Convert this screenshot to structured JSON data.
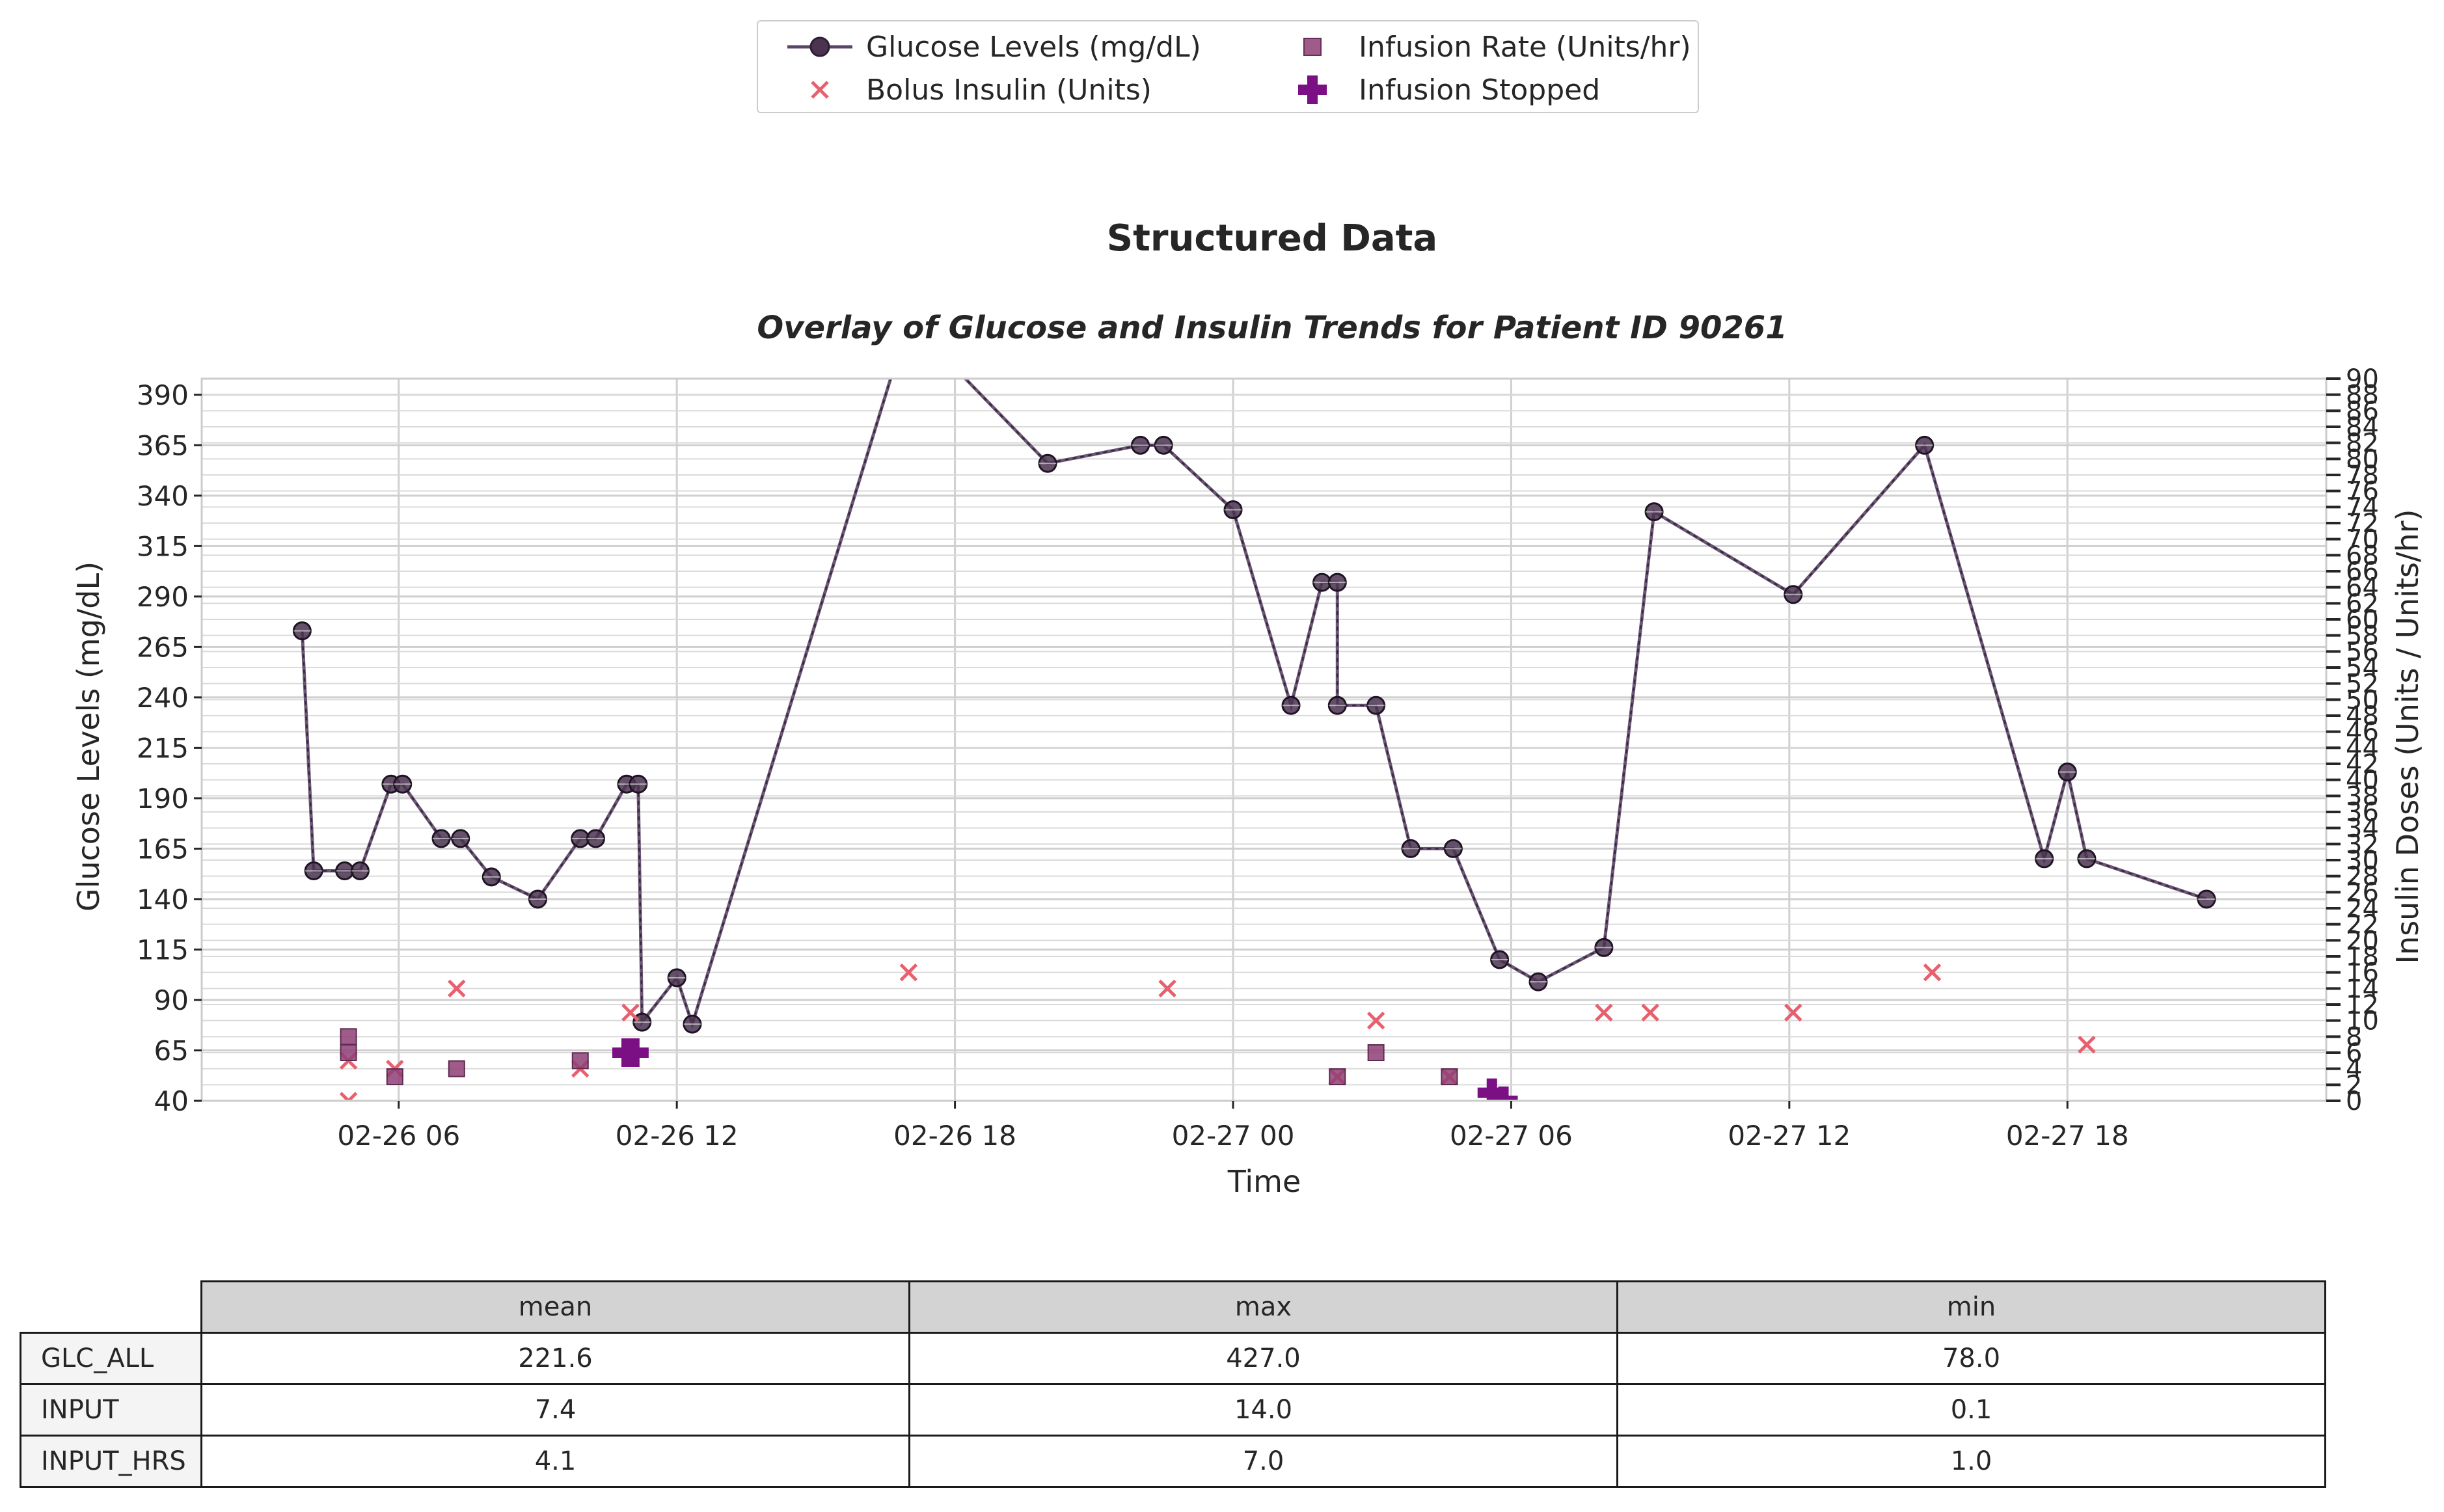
{
  "figure_title": "Structured Data",
  "chart_data": {
    "type": "line",
    "title": "Overlay of Glucose and Insulin Trends for Patient ID 90261",
    "xlabel": "Time",
    "ylabel": "Glucose Levels (mg/dL)",
    "y2label": "Insulin Doses (Units / Units/hr)",
    "ylim": [
      40,
      398
    ],
    "y2lim": [
      0,
      90
    ],
    "yticks": [
      40,
      65,
      90,
      115,
      140,
      165,
      190,
      215,
      240,
      265,
      290,
      315,
      340,
      365,
      390
    ],
    "xticks": [
      {
        "t": "2025-02-26T06:00",
        "label": "02-26 06"
      },
      {
        "t": "2025-02-26T12:00",
        "label": "02-26 12"
      },
      {
        "t": "2025-02-26T18:00",
        "label": "02-26 18"
      },
      {
        "t": "2025-02-27T00:00",
        "label": "02-27 00"
      },
      {
        "t": "2025-02-27T06:00",
        "label": "02-27 06"
      },
      {
        "t": "2025-02-27T12:00",
        "label": "02-27 12"
      },
      {
        "t": "2025-02-27T18:00",
        "label": "02-27 18"
      }
    ],
    "xlim": [
      "2025-02-26T01:45",
      "2025-02-27T23:35"
    ],
    "grid": true,
    "legend_position": "top-center",
    "series": [
      {
        "name": "Glucose Levels (mg/dL)",
        "kind": "line",
        "axis": "left",
        "color": "#5b4566",
        "points": [
          {
            "x": "2025-02-26T03:55",
            "y": 273
          },
          {
            "x": "2025-02-26T04:10",
            "y": 154
          },
          {
            "x": "2025-02-26T04:50",
            "y": 154
          },
          {
            "x": "2025-02-26T05:10",
            "y": 154
          },
          {
            "x": "2025-02-26T05:50",
            "y": 197
          },
          {
            "x": "2025-02-26T06:05",
            "y": 197
          },
          {
            "x": "2025-02-26T06:55",
            "y": 170
          },
          {
            "x": "2025-02-26T07:20",
            "y": 170
          },
          {
            "x": "2025-02-26T08:00",
            "y": 151
          },
          {
            "x": "2025-02-26T09:00",
            "y": 140
          },
          {
            "x": "2025-02-26T09:55",
            "y": 170
          },
          {
            "x": "2025-02-26T10:15",
            "y": 170
          },
          {
            "x": "2025-02-26T10:55",
            "y": 197
          },
          {
            "x": "2025-02-26T11:10",
            "y": 197
          },
          {
            "x": "2025-02-26T11:15",
            "y": 79
          },
          {
            "x": "2025-02-26T12:00",
            "y": 101
          },
          {
            "x": "2025-02-26T12:20",
            "y": 78
          },
          {
            "x": "2025-02-26T17:00",
            "y": 427
          },
          {
            "x": "2025-02-26T20:00",
            "y": 356
          },
          {
            "x": "2025-02-26T22:00",
            "y": 365
          },
          {
            "x": "2025-02-26T22:30",
            "y": 365
          },
          {
            "x": "2025-02-27T00:00",
            "y": 333
          },
          {
            "x": "2025-02-27T01:15",
            "y": 236
          },
          {
            "x": "2025-02-27T01:55",
            "y": 297
          },
          {
            "x": "2025-02-27T02:15",
            "y": 297
          },
          {
            "x": "2025-02-27T02:15",
            "y": 236
          },
          {
            "x": "2025-02-27T03:05",
            "y": 236
          },
          {
            "x": "2025-02-27T03:50",
            "y": 165
          },
          {
            "x": "2025-02-27T04:45",
            "y": 165
          },
          {
            "x": "2025-02-27T05:45",
            "y": 110
          },
          {
            "x": "2025-02-27T06:35",
            "y": 99
          },
          {
            "x": "2025-02-27T08:00",
            "y": 116
          },
          {
            "x": "2025-02-27T09:05",
            "y": 332
          },
          {
            "x": "2025-02-27T12:05",
            "y": 291
          },
          {
            "x": "2025-02-27T14:55",
            "y": 365
          },
          {
            "x": "2025-02-27T17:30",
            "y": 160
          },
          {
            "x": "2025-02-27T18:00",
            "y": 203
          },
          {
            "x": "2025-02-27T18:25",
            "y": 160
          },
          {
            "x": "2025-02-27T21:00",
            "y": 140
          }
        ]
      },
      {
        "name": "Bolus Insulin (Units)",
        "kind": "scatter",
        "marker": "x",
        "axis": "right",
        "color": "#e8606e",
        "points": [
          {
            "x": "2025-02-26T04:55",
            "y": 0
          },
          {
            "x": "2025-02-26T04:55",
            "y": 5
          },
          {
            "x": "2025-02-26T05:55",
            "y": 4
          },
          {
            "x": "2025-02-26T07:15",
            "y": 14
          },
          {
            "x": "2025-02-26T09:55",
            "y": 4
          },
          {
            "x": "2025-02-26T11:00",
            "y": 11
          },
          {
            "x": "2025-02-26T17:00",
            "y": 16
          },
          {
            "x": "2025-02-26T22:35",
            "y": 14
          },
          {
            "x": "2025-02-27T02:15",
            "y": 3
          },
          {
            "x": "2025-02-27T03:05",
            "y": 10
          },
          {
            "x": "2025-02-27T04:40",
            "y": 3
          },
          {
            "x": "2025-02-27T08:00",
            "y": 11
          },
          {
            "x": "2025-02-27T09:00",
            "y": 11
          },
          {
            "x": "2025-02-27T12:05",
            "y": 11
          },
          {
            "x": "2025-02-27T15:05",
            "y": 16
          },
          {
            "x": "2025-02-27T18:25",
            "y": 7
          }
        ]
      },
      {
        "name": "Infusion Rate (Units/hr)",
        "kind": "scatter",
        "marker": "square",
        "axis": "right",
        "color": "#8e3f76",
        "points": [
          {
            "x": "2025-02-26T04:55",
            "y": 8
          },
          {
            "x": "2025-02-26T04:55",
            "y": 6
          },
          {
            "x": "2025-02-26T05:55",
            "y": 3
          },
          {
            "x": "2025-02-26T07:15",
            "y": 4
          },
          {
            "x": "2025-02-26T09:55",
            "y": 5
          },
          {
            "x": "2025-02-27T02:15",
            "y": 3
          },
          {
            "x": "2025-02-27T03:05",
            "y": 6
          },
          {
            "x": "2025-02-27T04:40",
            "y": 3
          }
        ]
      },
      {
        "name": "Infusion Stopped",
        "kind": "scatter",
        "marker": "plus",
        "axis": "right",
        "color": "#7b0f84",
        "points": [
          {
            "x": "2025-02-26T10:55",
            "y": 6
          },
          {
            "x": "2025-02-26T11:05",
            "y": 6
          },
          {
            "x": "2025-02-27T05:35",
            "y": 1
          },
          {
            "x": "2025-02-27T05:50",
            "y": 0
          }
        ]
      }
    ]
  },
  "stats_table": {
    "columns": [
      "mean",
      "max",
      "min"
    ],
    "rows": [
      {
        "label": "GLC_ALL",
        "values": [
          "221.6",
          "427.0",
          "78.0"
        ]
      },
      {
        "label": "INPUT",
        "values": [
          "7.4",
          "14.0",
          "0.1"
        ]
      },
      {
        "label": "INPUT_HRS",
        "values": [
          "4.1",
          "7.0",
          "1.0"
        ]
      }
    ]
  }
}
